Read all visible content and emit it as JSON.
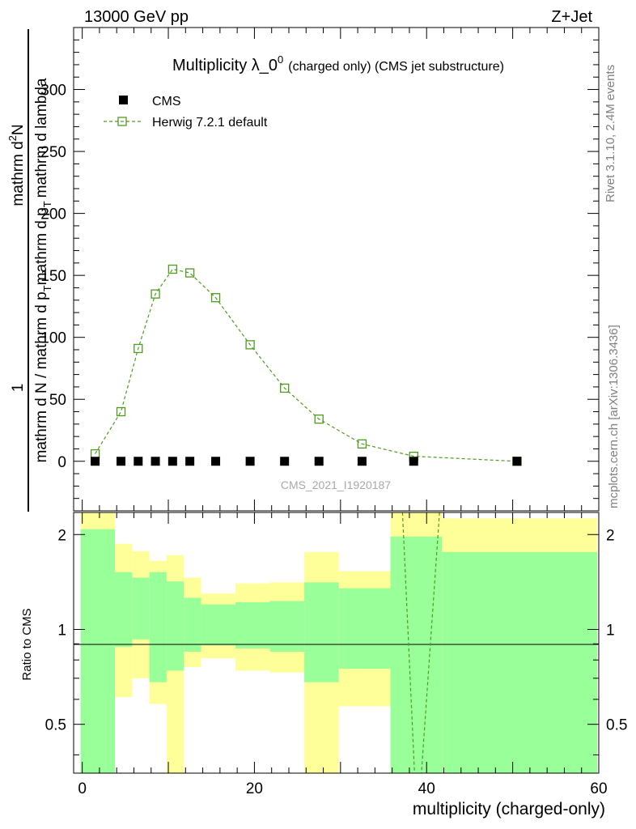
{
  "header": {
    "left": "13000 GeV pp",
    "right": "Z+Jet"
  },
  "side_labels": {
    "rivet": "Rivet 3.1.10,  2.4M events",
    "mcplots": "mcplots.cern.ch [arXiv:1306.3436]"
  },
  "chart_data": [
    {
      "type": "scatter",
      "panel": "main",
      "title_main": "Multiplicity λ_0",
      "title_sup": "0",
      "title_rest": "(charged only) (CMS jet substructure)",
      "ylabel_parts": [
        "1",
        "mathrm d N / mathrm d p",
        "T",
        "mathrm d p",
        "T",
        "mathrm d lambda",
        "mathrm d",
        "2",
        "N"
      ],
      "watermark": "CMS_2021_I1920187",
      "xlim": [
        -1,
        60
      ],
      "ylim": [
        -40,
        350
      ],
      "yticks": [
        0,
        50,
        100,
        150,
        200,
        250,
        300
      ],
      "legend_position": "top-left",
      "series": [
        {
          "name": "CMS",
          "style": "filled-square",
          "color": "#000000",
          "x": [
            1.5,
            4.5,
            6.5,
            8.5,
            10.5,
            12.5,
            15.5,
            19.5,
            23.5,
            27.5,
            32.5,
            38.5,
            50.5
          ],
          "y": [
            0,
            0,
            0,
            0,
            0,
            0,
            0,
            0,
            0,
            0,
            0,
            0,
            0
          ]
        },
        {
          "name": "Herwig 7.2.1 default",
          "style": "open-square-dashed",
          "color": "#4d9b1f",
          "x": [
            1.5,
            4.5,
            6.5,
            8.5,
            10.5,
            12.5,
            15.5,
            19.5,
            23.5,
            27.5,
            32.5,
            38.5,
            50.5
          ],
          "y": [
            6,
            40,
            91,
            135,
            155,
            152,
            132,
            94,
            59,
            34,
            14,
            4,
            0
          ]
        }
      ]
    },
    {
      "type": "area",
      "panel": "ratio",
      "ylabel": "Ratio to CMS",
      "xlabel": "multiplicity (charged-only)",
      "xlim": [
        -1,
        60
      ],
      "ylim": [
        0.35,
        2.35
      ],
      "xticks": [
        0,
        20,
        40,
        60
      ],
      "yticks": [
        0.5,
        1,
        2
      ],
      "ytick_labels": [
        "0.5",
        "1",
        "2"
      ],
      "bins": [
        {
          "lo": -0.2,
          "hi": 3.8,
          "y1": [
            0.35,
            2.08
          ],
          "y2": [
            0.35,
            2.35
          ]
        },
        {
          "lo": 3.8,
          "hi": 5.8,
          "y1": [
            0.88,
            1.52
          ],
          "y2": [
            0.61,
            1.87
          ]
        },
        {
          "lo": 5.8,
          "hi": 7.8,
          "y1": [
            0.93,
            1.46
          ],
          "y2": [
            0.7,
            1.77
          ]
        },
        {
          "lo": 7.8,
          "hi": 9.8,
          "y1": [
            0.68,
            1.52
          ],
          "y2": [
            0.58,
            1.65
          ]
        },
        {
          "lo": 9.8,
          "hi": 11.8,
          "y1": [
            0.74,
            1.42
          ],
          "y2": [
            0.35,
            1.72
          ]
        },
        {
          "lo": 11.8,
          "hi": 13.8,
          "y1": [
            0.85,
            1.26
          ],
          "y2": [
            0.76,
            1.46
          ]
        },
        {
          "lo": 13.8,
          "hi": 17.8,
          "y1": [
            0.89,
            1.2
          ],
          "y2": [
            0.81,
            1.3
          ]
        },
        {
          "lo": 17.8,
          "hi": 21.8,
          "y1": [
            0.87,
            1.22
          ],
          "y2": [
            0.74,
            1.4
          ]
        },
        {
          "lo": 21.8,
          "hi": 25.8,
          "y1": [
            0.85,
            1.23
          ],
          "y2": [
            0.73,
            1.41
          ]
        },
        {
          "lo": 25.8,
          "hi": 29.8,
          "y1": [
            0.68,
            1.41
          ],
          "y2": [
            0.35,
            1.76
          ]
        },
        {
          "lo": 29.8,
          "hi": 35.8,
          "y1": [
            0.75,
            1.35
          ],
          "y2": [
            0.57,
            1.53
          ]
        },
        {
          "lo": 35.8,
          "hi": 41.8,
          "y1": [
            0.35,
            1.97
          ],
          "y2": [
            0.35,
            2.35
          ]
        },
        {
          "lo": 41.8,
          "hi": 59.8,
          "y1": [
            0.35,
            1.76
          ],
          "y2": [
            0.35,
            2.25
          ]
        }
      ],
      "herwig_ratio_lines": [
        {
          "x": [
            37.2,
            38.6
          ],
          "y": [
            2.35,
            0.35
          ]
        },
        {
          "x": [
            41.5,
            39.4
          ],
          "y": [
            2.35,
            0.35
          ]
        }
      ]
    }
  ]
}
